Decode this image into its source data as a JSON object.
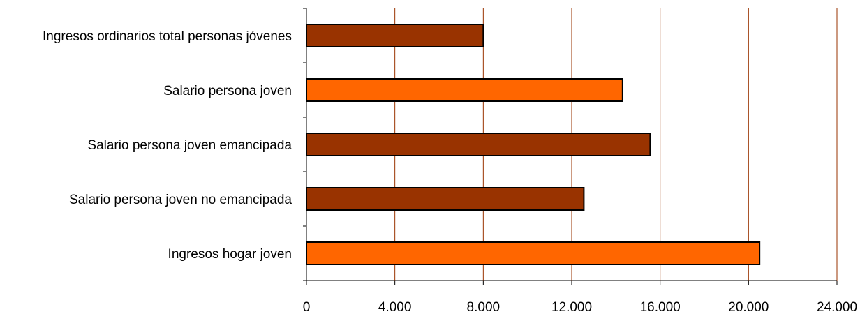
{
  "chart_data": {
    "type": "bar",
    "orientation": "horizontal",
    "categories": [
      "Ingresos ordinarios total personas jóvenes",
      "Salario persona joven",
      "Salario persona joven emancipada",
      "Salario persona joven no emancipada",
      "Ingresos hogar joven"
    ],
    "values": [
      8000,
      14300,
      15550,
      12550,
      20500
    ],
    "bar_colors": [
      "#993300",
      "#FF6600",
      "#993300",
      "#993300",
      "#FF6600"
    ],
    "xlim": [
      0,
      24000
    ],
    "ticks": [
      0,
      4000,
      8000,
      12000,
      16000,
      20000,
      24000
    ],
    "tick_labels": [
      "0",
      "4.000",
      "8.000",
      "12.000",
      "16.000",
      "20.000",
      "24.000"
    ],
    "grid": true,
    "grid_color": "#993300",
    "title": "",
    "xlabel": "",
    "ylabel": ""
  }
}
